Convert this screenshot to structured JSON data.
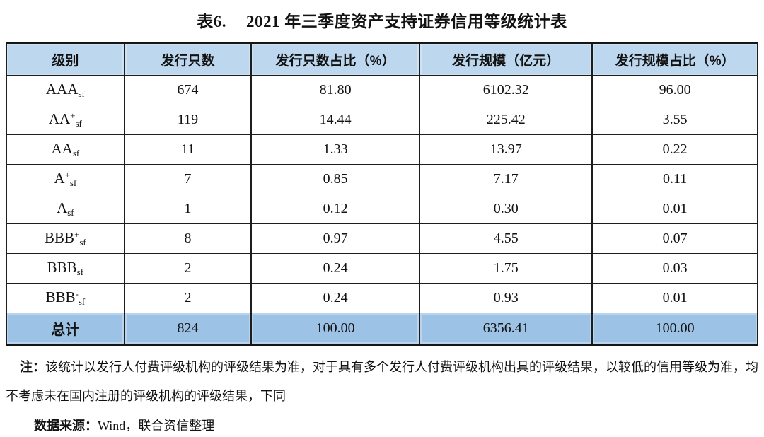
{
  "caption": {
    "prefix": "表6.",
    "text": "2021 年三季度资产支持证券信用等级统计表"
  },
  "table": {
    "headers": [
      "级别",
      "发行只数",
      "发行只数占比（%）",
      "发行规模（亿元）",
      "发行规模占比（%）"
    ],
    "rows": [
      {
        "rating": {
          "base": "AAA",
          "sup": "",
          "sub": "sf"
        },
        "count": "674",
        "count_pct": "81.80",
        "scale": "6102.32",
        "scale_pct": "96.00"
      },
      {
        "rating": {
          "base": "AA",
          "sup": "+",
          "sub": "sf"
        },
        "count": "119",
        "count_pct": "14.44",
        "scale": "225.42",
        "scale_pct": "3.55"
      },
      {
        "rating": {
          "base": "AA",
          "sup": "",
          "sub": "sf"
        },
        "count": "11",
        "count_pct": "1.33",
        "scale": "13.97",
        "scale_pct": "0.22"
      },
      {
        "rating": {
          "base": "A",
          "sup": "+",
          "sub": "sf"
        },
        "count": "7",
        "count_pct": "0.85",
        "scale": "7.17",
        "scale_pct": "0.11"
      },
      {
        "rating": {
          "base": "A",
          "sup": "",
          "sub": "sf"
        },
        "count": "1",
        "count_pct": "0.12",
        "scale": "0.30",
        "scale_pct": "0.01"
      },
      {
        "rating": {
          "base": "BBB",
          "sup": "+",
          "sub": "sf"
        },
        "count": "8",
        "count_pct": "0.97",
        "scale": "4.55",
        "scale_pct": "0.07"
      },
      {
        "rating": {
          "base": "BBB",
          "sup": "",
          "sub": "sf"
        },
        "count": "2",
        "count_pct": "0.24",
        "scale": "1.75",
        "scale_pct": "0.03"
      },
      {
        "rating": {
          "base": "BBB",
          "sup": "-",
          "sub": "sf"
        },
        "count": "2",
        "count_pct": "0.24",
        "scale": "0.93",
        "scale_pct": "0.01"
      }
    ],
    "total": {
      "label": "总计",
      "count": "824",
      "count_pct": "100.00",
      "scale": "6356.41",
      "scale_pct": "100.00"
    }
  },
  "footnote": {
    "note_label": "注：",
    "note_text": "该统计以发行人付费评级机构的评级结果为准，对于具有多个发行人付费评级机构出具的评级结果，以较低的信用等级为准，均不考虑未在国内注册的评级机构的评级结果，下同",
    "source_label": "数据来源：",
    "source_text": "Wind，联合资信整理"
  },
  "colors": {
    "header_bg": "#bdd7ee",
    "total_bg": "#9cc2e5",
    "border": "#1d1d1d"
  }
}
